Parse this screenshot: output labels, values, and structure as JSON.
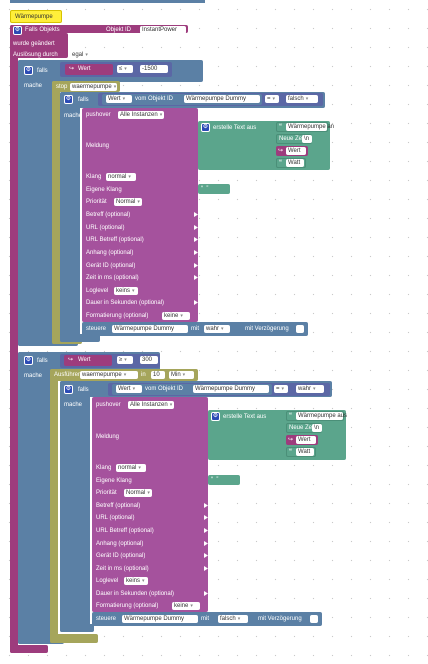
{
  "colors": {
    "trigger": "#9d3c7d",
    "controlBlue": "#5b80a5",
    "stopGreen": "#a5a55b",
    "mathBlue": "#5b67a5",
    "textGreen": "#5ba58c",
    "pushoverPurple": "#a5529d",
    "stateBlue": "#5b80a5"
  },
  "comment": {
    "label": "Wärmepumpe"
  },
  "trigger": {
    "title": "Falls Objekts",
    "object_label": "Objekt ID",
    "object_id": "InstantPower",
    "changed": "wurde geändert",
    "trigger_label": "Auslösung durch",
    "trigger_value": "egal"
  },
  "common": {
    "falls": "falls",
    "mache": "mache",
    "wert": "Wert",
    "from_object": "vom Objekt ID",
    "dummy": "Wärmepumpe Dummy",
    "op_eq": "=",
    "pushover": "pushover",
    "all_instances": "Alle Instanzen",
    "meldung": "Meldung",
    "create_text": "erstelle Text aus",
    "newline": "Neue Zeile",
    "newline_value": "\\n",
    "watt": "Watt",
    "klang": "Klang",
    "klang_value": "normal",
    "own_klang": "Eigene Klang",
    "prioritaet": "Priorität",
    "prioritaet_value": "Normal",
    "betreff": "Betreff (optional)",
    "url": "URL (optional)",
    "url_betreff": "URL Betreff (optional)",
    "anhang": "Anhang (optional)",
    "geraet": "Gerät ID (optional)",
    "zeit": "Zeit in ms (optional)",
    "loglevel": "Loglevel",
    "loglevel_value": "keins",
    "dauer": "Dauer in Sekunden (optional)",
    "formatierung": "Formatierung (optional)",
    "formatierung_value": "keine",
    "steuere": "steuere",
    "mit": "mit",
    "verzoegerung": "mit Verzögerung"
  },
  "block1": {
    "op": "≤",
    "value": "-1500",
    "stop_label": "stop",
    "stop_target": "waermepumpe",
    "compare_value": "falsch",
    "text_value": "Wärmepumpe an",
    "set_value": "wahr"
  },
  "block2": {
    "op": "≥",
    "value": "300",
    "run_label": "Ausführen",
    "run_target": "waermepumpe",
    "in_label": "in",
    "in_value": "10",
    "unit": "Min",
    "compare_value": "wahr",
    "text_value": "Wärmepumpe aus",
    "set_value": "falsch"
  }
}
